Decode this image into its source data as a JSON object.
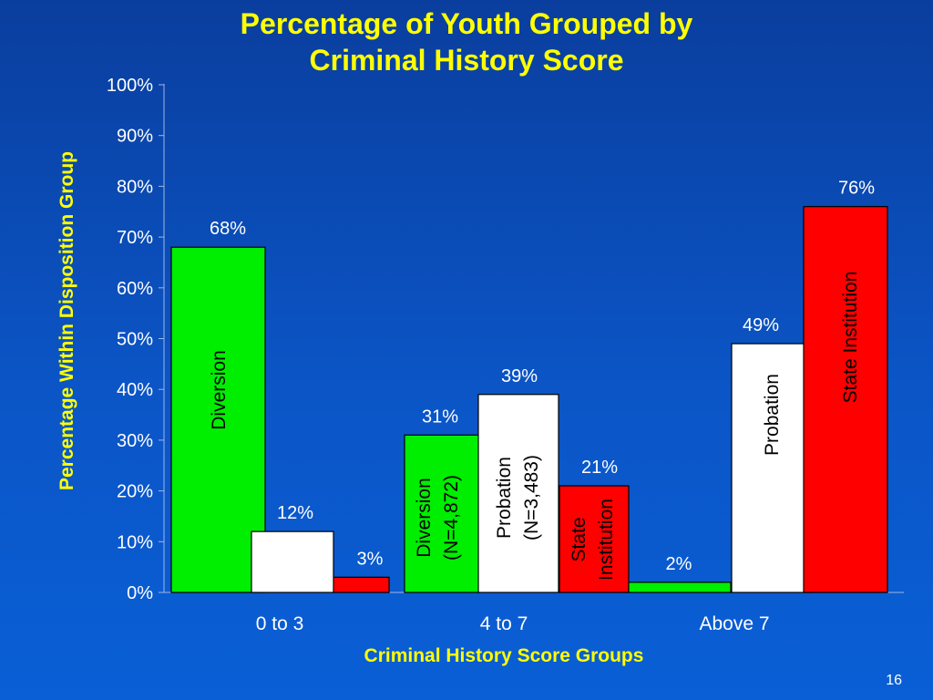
{
  "title_line1": "Percentage of Youth Grouped by",
  "title_line2": "Criminal History Score",
  "slide_number": "16",
  "chart_data": {
    "type": "bar",
    "title": "Percentage of Youth Grouped by Criminal History Score",
    "xlabel": "Criminal History Score Groups",
    "ylabel": "Percentage Within Disposition Group",
    "ylim": [
      0,
      100
    ],
    "yticks": [
      "0%",
      "10%",
      "20%",
      "30%",
      "40%",
      "50%",
      "60%",
      "70%",
      "80%",
      "90%",
      "100%"
    ],
    "categories": [
      "0 to 3",
      "4 to 7",
      "Above 7"
    ],
    "legend": "none",
    "grid": false,
    "series": [
      {
        "name": "Diversion",
        "color": "#00ee00",
        "values": [
          68,
          31,
          2
        ],
        "data_labels": [
          "68%",
          "31%",
          "2%"
        ]
      },
      {
        "name": "Probation",
        "color": "#ffffff",
        "values": [
          12,
          39,
          49
        ],
        "data_labels": [
          "12%",
          "39%",
          "49%"
        ]
      },
      {
        "name": "State Institution",
        "color": "#ff0000",
        "values": [
          3,
          21,
          76
        ],
        "data_labels": [
          "3%",
          "21%",
          "76%"
        ]
      }
    ],
    "bar_labels": [
      {
        "series": 0,
        "category": 0,
        "lines": [
          "Diversion"
        ]
      },
      {
        "series": 0,
        "category": 1,
        "lines": [
          "Diversion",
          "(N=4,872)"
        ]
      },
      {
        "series": 1,
        "category": 1,
        "lines": [
          "Probation",
          "(N=3,483)"
        ]
      },
      {
        "series": 2,
        "category": 1,
        "lines": [
          "State",
          "Institution"
        ]
      },
      {
        "series": 1,
        "category": 2,
        "lines": [
          "Probation"
        ]
      },
      {
        "series": 2,
        "category": 2,
        "lines": [
          "State Institution"
        ]
      }
    ]
  }
}
